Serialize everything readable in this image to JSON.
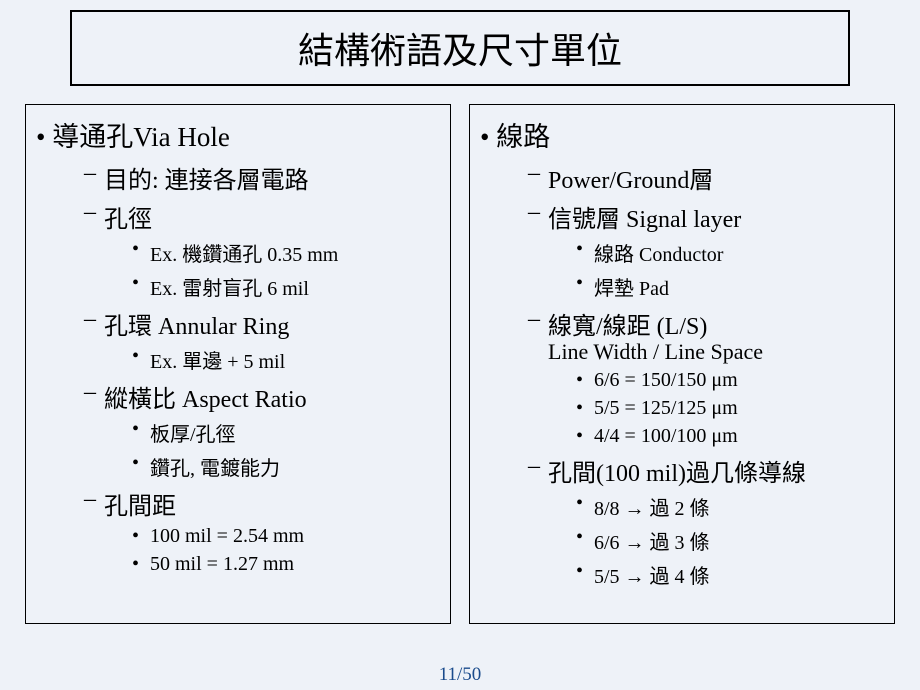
{
  "colors": {
    "background": "#eef2f8",
    "text": "#000000",
    "border": "#000000",
    "page_number": "#1a4b8c"
  },
  "title": "結構術語及尺寸單位",
  "left": {
    "item": "導通孔Via Hole",
    "sub1": "目的: 連接各層電路",
    "sub2": "孔徑",
    "sub2a": "Ex. 機鑽通孔 0.35 mm",
    "sub2b": "Ex. 雷射盲孔 6 mil",
    "sub3": "孔環 Annular Ring",
    "sub3a": "Ex. 單邊 + 5 mil",
    "sub4": "縱橫比 Aspect Ratio",
    "sub4a": "板厚/孔徑",
    "sub4b": "鑽孔, 電鍍能力",
    "sub5": "孔間距",
    "sub5a": "100 mil = 2.54 mm",
    "sub5b": "  50 mil = 1.27 mm"
  },
  "right": {
    "item": "線路",
    "sub1": "Power/Ground層",
    "sub2": "信號層 Signal layer",
    "sub2a": "線路 Conductor",
    "sub2b": "焊墊 Pad",
    "sub3": "線寬/線距 (L/S)",
    "sub3line": "Line Width / Line Space",
    "sub3a": "6/6 = 150/150 μm",
    "sub3b": "5/5 = 125/125 μm",
    "sub3c": "4/4 = 100/100 μm",
    "sub4": "孔間(100 mil)過几條導線",
    "sub4a": "8/8 → 過 2 條",
    "sub4b": "6/6 → 過 3 條",
    "sub4c": "5/5 → 過 4 條"
  },
  "page_number": "11/50"
}
